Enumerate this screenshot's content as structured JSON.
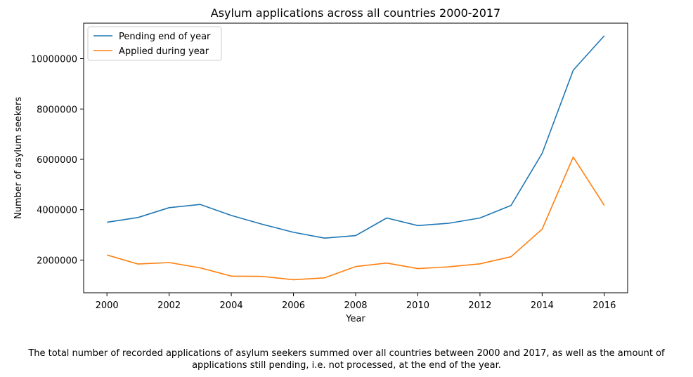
{
  "chart_data": {
    "type": "line",
    "title": "Asylum applications across all countries 2000-2017",
    "xlabel": "Year",
    "ylabel": "Number of asylum seekers",
    "x": [
      2000,
      2001,
      2002,
      2003,
      2004,
      2005,
      2006,
      2007,
      2008,
      2009,
      2010,
      2011,
      2012,
      2013,
      2014,
      2015,
      2016
    ],
    "xticks": [
      2000,
      2002,
      2004,
      2006,
      2008,
      2010,
      2012,
      2014,
      2016
    ],
    "yticks": [
      2000000,
      4000000,
      6000000,
      8000000,
      10000000
    ],
    "xlim": [
      1999.25,
      2016.75
    ],
    "ylim": [
      700000,
      11410000
    ],
    "grid": false,
    "legend_position": "top-left",
    "series": [
      {
        "name": "Pending end of year",
        "color": "#1f77b4",
        "values": [
          3500000,
          3690000,
          4080000,
          4210000,
          3770000,
          3420000,
          3100000,
          2870000,
          2970000,
          3670000,
          3370000,
          3460000,
          3670000,
          4170000,
          6240000,
          9540000,
          10910000
        ]
      },
      {
        "name": "Applied during year",
        "color": "#ff7f0e",
        "values": [
          2200000,
          1840000,
          1900000,
          1690000,
          1360000,
          1350000,
          1220000,
          1290000,
          1740000,
          1880000,
          1660000,
          1730000,
          1850000,
          2130000,
          3230000,
          6090000,
          4170000
        ]
      }
    ]
  },
  "caption": "The total number of recorded applications of asylum seekers summed over all countries between 2000 and 2017, as well as the amount of applications still pending, i.e. not processed, at the end of the year."
}
